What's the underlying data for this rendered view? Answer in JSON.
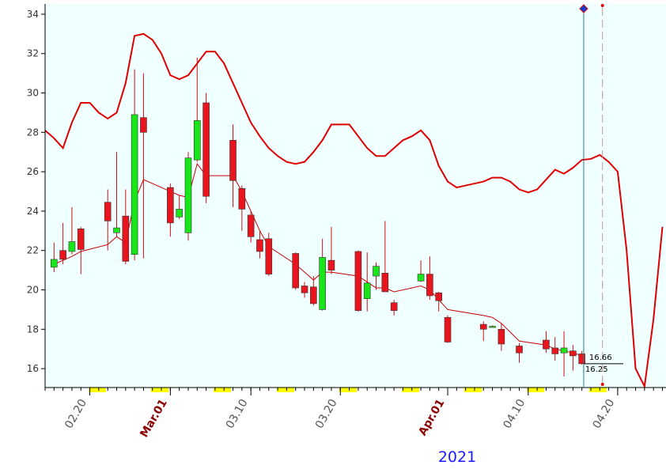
{
  "chart_data": {
    "type": "candlestick",
    "year_label": "2021",
    "xlim": [
      15,
      84.4
    ],
    "ylim": [
      15.04,
      34.52
    ],
    "yticks": [
      16,
      18,
      20,
      22,
      24,
      26,
      28,
      30,
      32,
      34
    ],
    "xticks": [
      {
        "value": 20,
        "label": "02.20"
      },
      {
        "value": 29,
        "label": "Mar.01"
      },
      {
        "value": 38,
        "label": "03.10"
      },
      {
        "value": 48,
        "label": "03.20"
      },
      {
        "value": 60,
        "label": "Apr.01"
      },
      {
        "value": 69,
        "label": "04.10"
      },
      {
        "value": 79,
        "label": "04.20"
      }
    ],
    "plot_background": "#f0ffff",
    "up_color": "#19e619",
    "down_color": "#e8141e",
    "candles": {
      "x": [
        16,
        17,
        18,
        19,
        22,
        23,
        24,
        25,
        26,
        29,
        30,
        31,
        32,
        33,
        36,
        37,
        38,
        39,
        40,
        43,
        44,
        45,
        46,
        47,
        50,
        51,
        52,
        53,
        54,
        57,
        58,
        59,
        60,
        64,
        65,
        66,
        68,
        71,
        72,
        73,
        74,
        75
      ],
      "open": [
        21.15,
        22.0,
        21.95,
        23.1,
        24.45,
        22.9,
        23.75,
        21.8,
        28.75,
        25.2,
        23.7,
        22.9,
        26.6,
        29.5,
        27.6,
        25.15,
        23.8,
        22.55,
        22.6,
        21.85,
        20.2,
        20.15,
        19.0,
        21.5,
        21.95,
        19.55,
        20.7,
        20.85,
        19.35,
        20.45,
        20.8,
        19.85,
        18.6,
        18.25,
        18.15,
        18.0,
        17.15,
        17.45,
        17.05,
        16.8,
        16.9,
        16.75
      ],
      "high": [
        22.4,
        23.4,
        24.2,
        23.2,
        25.1,
        27.0,
        25.1,
        31.2,
        31.0,
        25.4,
        24.8,
        27.0,
        31.8,
        30.0,
        28.4,
        25.3,
        24.0,
        23.0,
        22.9,
        21.9,
        20.4,
        20.7,
        22.6,
        23.2,
        22.0,
        21.9,
        21.4,
        23.5,
        19.5,
        21.5,
        21.7,
        19.9,
        18.7,
        18.4,
        18.2,
        18.3,
        17.3,
        17.9,
        17.6,
        17.9,
        17.2,
        16.9
      ],
      "low": [
        20.9,
        21.3,
        21.8,
        20.8,
        22.0,
        22.7,
        21.3,
        21.5,
        21.6,
        22.7,
        23.6,
        22.5,
        26.5,
        24.4,
        24.2,
        23.0,
        22.4,
        21.6,
        20.7,
        20.0,
        19.6,
        19.2,
        18.95,
        20.8,
        18.9,
        18.9,
        20.0,
        19.9,
        18.7,
        20.4,
        19.5,
        18.9,
        17.3,
        17.4,
        18.1,
        16.9,
        16.3,
        16.8,
        16.4,
        15.6,
        15.9,
        16.2
      ],
      "close": [
        21.55,
        21.55,
        22.45,
        22.05,
        23.5,
        23.15,
        21.45,
        28.9,
        28.0,
        23.4,
        24.1,
        26.7,
        28.6,
        24.75,
        25.55,
        24.1,
        22.7,
        21.95,
        20.8,
        20.1,
        19.85,
        19.3,
        21.65,
        21.0,
        18.95,
        20.35,
        21.2,
        19.9,
        18.95,
        20.8,
        19.7,
        19.45,
        17.35,
        18.0,
        18.15,
        17.25,
        16.8,
        17.0,
        16.75,
        17.05,
        16.65,
        16.25
      ]
    },
    "series": [
      {
        "color": "#e00000",
        "width": 2,
        "x": [
          15,
          16,
          17,
          18,
          19,
          20,
          21,
          22,
          23,
          24,
          25,
          26,
          27,
          28,
          29,
          30,
          31,
          32,
          33,
          34,
          35,
          36,
          37,
          38,
          39,
          40,
          41,
          42,
          43,
          44,
          45,
          46,
          47,
          48,
          49,
          50,
          51,
          52,
          53,
          54,
          55,
          56,
          57,
          58,
          59,
          60,
          61,
          62,
          63,
          64,
          65,
          66,
          67,
          68,
          69,
          70,
          71,
          72,
          73,
          74,
          75,
          76,
          77,
          78,
          79,
          80,
          81,
          82,
          83,
          84
        ],
        "values": [
          28.1,
          27.7,
          27.2,
          28.5,
          29.5,
          29.5,
          29.0,
          28.7,
          29.0,
          30.5,
          32.9,
          33.0,
          32.7,
          32.0,
          30.9,
          30.7,
          30.9,
          31.5,
          32.1,
          32.1,
          31.5,
          30.5,
          29.5,
          28.5,
          27.8,
          27.2,
          26.8,
          26.5,
          26.4,
          26.5,
          27.0,
          27.6,
          28.4,
          28.4,
          28.4,
          27.8,
          27.2,
          26.8,
          26.8,
          27.2,
          27.6,
          27.8,
          28.1,
          27.6,
          26.3,
          25.5,
          25.2,
          25.3,
          25.4,
          25.5,
          25.7,
          25.7,
          25.5,
          25.1,
          24.95,
          25.1,
          25.6,
          26.1,
          25.9,
          26.2,
          26.6,
          26.65,
          26.85,
          26.5,
          26.0,
          22.0,
          16.0,
          15.1,
          18.5,
          23.2
        ]
      },
      {
        "color": "#c80000",
        "width": 1,
        "x": [
          16,
          17,
          18,
          19,
          22,
          23,
          24,
          25,
          26,
          29,
          30,
          31,
          32,
          33,
          36,
          37,
          38,
          39,
          40,
          43,
          44,
          45,
          46,
          47,
          50,
          51,
          52,
          53,
          54,
          57,
          58,
          59,
          60,
          64,
          65,
          66,
          68,
          71,
          72,
          73,
          74,
          75
        ],
        "values": [
          21.3,
          21.5,
          21.7,
          21.95,
          22.3,
          22.7,
          22.4,
          24.5,
          25.6,
          25.0,
          24.8,
          24.7,
          26.4,
          25.8,
          25.8,
          25.0,
          24.0,
          23.0,
          22.2,
          21.3,
          20.9,
          20.5,
          20.9,
          20.9,
          20.7,
          20.4,
          20.1,
          20.1,
          19.9,
          20.2,
          20.0,
          19.5,
          19.0,
          18.7,
          18.6,
          18.3,
          17.4,
          17.2,
          17.0,
          16.9,
          16.8,
          16.66
        ]
      }
    ],
    "price_marks": [
      16.66,
      16.25
    ],
    "cursor_x": 75.2,
    "projection_x": 77.3
  }
}
